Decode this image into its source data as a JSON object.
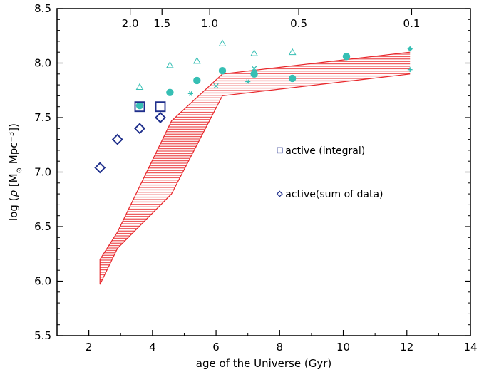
{
  "chart_data": {
    "type": "scatter",
    "xlabel": "age of the Universe (Gyr)",
    "ylabel_parts": {
      "prefix": "log (",
      "rho": "ρ",
      "open": " [M",
      "sub": "⊙",
      "mid": " Mpc",
      "sup": "−3",
      "close": "])"
    },
    "xlim": [
      1,
      14
    ],
    "ylim": [
      5.5,
      8.5
    ],
    "x_ticks": [
      2,
      4,
      6,
      8,
      10,
      12,
      14
    ],
    "y_ticks": [
      5.5,
      6.0,
      6.5,
      7.0,
      7.5,
      8.0,
      8.5
    ],
    "x_tick_labels": [
      "2",
      "4",
      "6",
      "8",
      "10",
      "12",
      "14"
    ],
    "y_tick_labels": [
      "5.5",
      "6.0",
      "6.5",
      "7.0",
      "7.5",
      "8.0",
      "8.5"
    ],
    "top_axis": {
      "ticks": [
        {
          "x": 3.3,
          "label": "2.0"
        },
        {
          "x": 4.3,
          "label": "1.5"
        },
        {
          "x": 5.8,
          "label": "1.0"
        },
        {
          "x": 8.6,
          "label": "0.5"
        },
        {
          "x": 12.15,
          "label": "0.1"
        }
      ]
    },
    "colors": {
      "band": "#e8262a",
      "model": "#36bfb4",
      "active": "#1f2f8c"
    },
    "band": {
      "upper": [
        [
          2.35,
          6.2
        ],
        [
          2.9,
          6.45
        ],
        [
          4.6,
          7.47
        ],
        [
          6.2,
          7.9
        ],
        [
          12.1,
          8.1
        ]
      ],
      "lower": [
        [
          2.35,
          5.97
        ],
        [
          2.9,
          6.3
        ],
        [
          4.6,
          6.8
        ],
        [
          6.2,
          7.7
        ],
        [
          12.1,
          7.9
        ]
      ]
    },
    "series": [
      {
        "marker": "triangle",
        "points": [
          [
            3.6,
            7.78
          ],
          [
            4.55,
            7.98
          ],
          [
            5.4,
            8.02
          ],
          [
            6.2,
            8.18
          ],
          [
            7.2,
            8.09
          ],
          [
            8.4,
            8.1
          ]
        ]
      },
      {
        "marker": "circle",
        "points": [
          [
            3.6,
            7.61
          ],
          [
            4.55,
            7.73
          ],
          [
            5.4,
            7.84
          ],
          [
            6.2,
            7.93
          ],
          [
            7.2,
            7.9
          ],
          [
            8.4,
            7.86
          ],
          [
            10.1,
            8.06
          ]
        ]
      },
      {
        "marker": "star",
        "points": [
          [
            5.2,
            7.72
          ],
          [
            7.0,
            7.83
          ],
          [
            7.2,
            7.92
          ]
        ]
      },
      {
        "marker": "cross",
        "points": [
          [
            6.0,
            7.79
          ],
          [
            7.2,
            7.95
          ]
        ]
      },
      {
        "marker": "plus",
        "points": [
          [
            12.1,
            7.94
          ]
        ]
      },
      {
        "marker": "filled-diamond",
        "points": [
          [
            12.1,
            8.13
          ]
        ]
      },
      {
        "marker": "square",
        "name": "active (integral)",
        "points": [
          [
            3.6,
            7.6
          ],
          [
            4.25,
            7.6
          ]
        ]
      },
      {
        "marker": "diamond",
        "name": "active(sum of data)",
        "points": [
          [
            2.35,
            7.04
          ],
          [
            2.9,
            7.3
          ],
          [
            3.6,
            7.4
          ],
          [
            4.25,
            7.5
          ]
        ]
      }
    ],
    "legend": [
      {
        "marker": "square",
        "label": "active (integral)",
        "x": 8.0,
        "y": 7.2
      },
      {
        "marker": "diamond",
        "label": "active(sum of data)",
        "x": 8.0,
        "y": 6.8
      }
    ]
  }
}
